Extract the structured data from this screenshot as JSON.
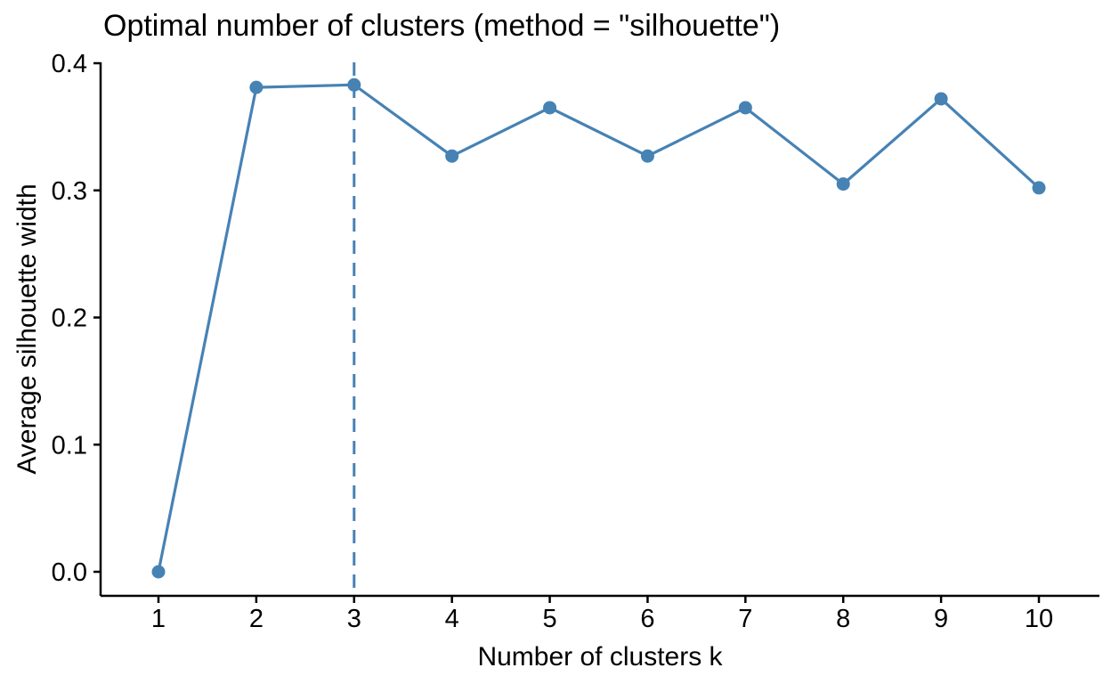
{
  "chart_data": {
    "type": "line",
    "title": "Optimal number of clusters (method = \"silhouette\")",
    "xlabel": "Number of clusters k",
    "ylabel": "Average silhouette width",
    "x": [
      1,
      2,
      3,
      4,
      5,
      6,
      7,
      8,
      9,
      10
    ],
    "y": [
      0.0,
      0.381,
      0.383,
      0.327,
      0.365,
      0.327,
      0.365,
      0.305,
      0.372,
      0.302
    ],
    "xtick_labels": [
      "1",
      "2",
      "3",
      "4",
      "5",
      "6",
      "7",
      "8",
      "9",
      "10"
    ],
    "ytick_values": [
      0.0,
      0.1,
      0.2,
      0.3,
      0.4
    ],
    "ytick_labels": [
      "0.0",
      "0.1",
      "0.2",
      "0.3",
      "0.4"
    ],
    "xlim": [
      1,
      10
    ],
    "ylim": [
      0.0,
      0.4
    ],
    "optimal_k": 3,
    "vline_x": 3,
    "vline_style": "dashed",
    "grid": false,
    "legend_position": "none",
    "line_color": "#4682B4",
    "point_color": "#4682B4",
    "axis_color": "#000000",
    "text_color": "#000000",
    "background_color": "#FFFFFF"
  }
}
